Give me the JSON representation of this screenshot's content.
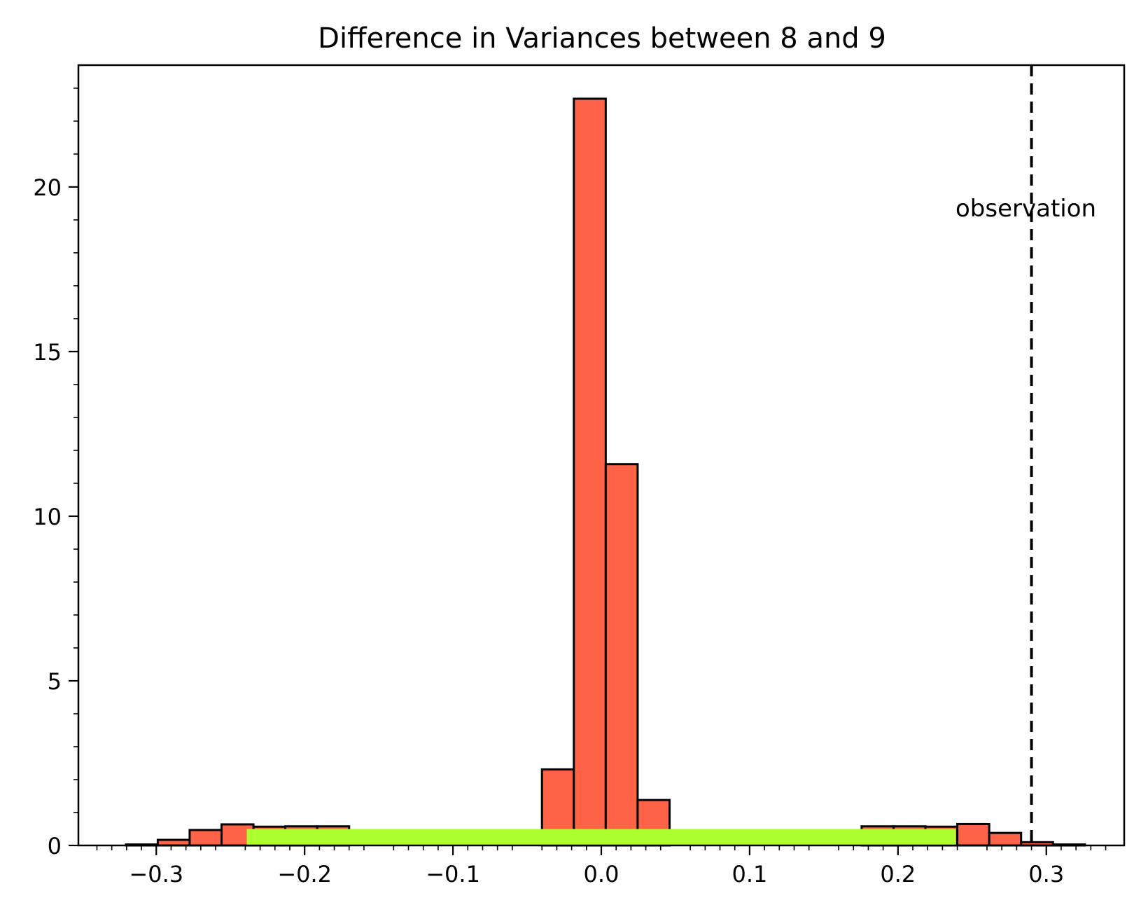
{
  "chart_data": {
    "type": "bar",
    "title": "Difference in Variances between 8 and 9",
    "xlabel": "",
    "ylabel": "",
    "xlim": [
      -0.3525,
      0.3525
    ],
    "ylim": [
      0,
      23.7
    ],
    "xticks": [
      -0.3,
      -0.2,
      -0.1,
      0.0,
      0.1,
      0.2,
      0.3
    ],
    "xtick_labels": [
      "−0.3",
      "−0.2",
      "−0.1",
      "0.0",
      "0.1",
      "0.2",
      "0.3"
    ],
    "yticks": [
      0,
      5,
      10,
      15,
      20
    ],
    "ytick_labels": [
      "0",
      "5",
      "10",
      "15",
      "20"
    ],
    "grid": false,
    "bin_width": 0.0215,
    "series": [
      {
        "color": "#ff6347",
        "edgecolor": "#000000",
        "bins": [
          {
            "x0": -0.3205,
            "height": 0.03
          },
          {
            "x0": -0.299,
            "height": 0.17
          },
          {
            "x0": -0.2775,
            "height": 0.47
          },
          {
            "x0": -0.256,
            "height": 0.64
          },
          {
            "x0": -0.2345,
            "height": 0.57
          },
          {
            "x0": -0.213,
            "height": 0.58
          },
          {
            "x0": -0.1915,
            "height": 0.58
          },
          {
            "x0": -0.04,
            "height": 2.31
          },
          {
            "x0": -0.0185,
            "height": 22.68
          },
          {
            "x0": 0.003,
            "height": 11.58
          },
          {
            "x0": 0.0245,
            "height": 1.38
          },
          {
            "x0": 0.1755,
            "height": 0.58
          },
          {
            "x0": 0.197,
            "height": 0.58
          },
          {
            "x0": 0.2185,
            "height": 0.57
          },
          {
            "x0": 0.24,
            "height": 0.65
          },
          {
            "x0": 0.2615,
            "height": 0.38
          },
          {
            "x0": 0.283,
            "height": 0.1
          },
          {
            "x0": 0.3045,
            "height": 0.03
          }
        ]
      }
    ],
    "band": {
      "x0": -0.239,
      "x1": 0.239,
      "height": 0.5,
      "color": "#adff2f"
    },
    "observation": {
      "x": 0.29,
      "label": "observation",
      "label_y": 19.1
    }
  }
}
